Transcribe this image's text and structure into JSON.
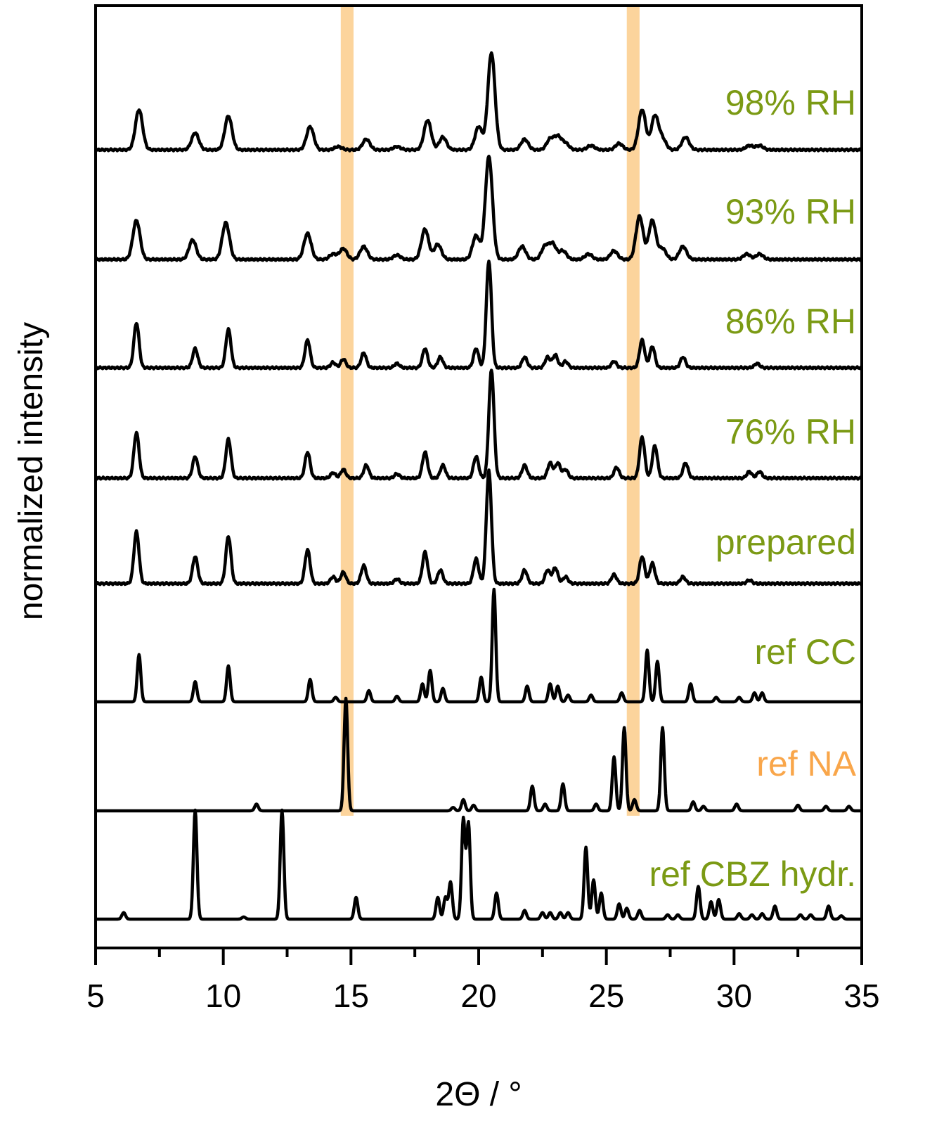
{
  "chart_data": {
    "type": "line",
    "title": "",
    "xlabel": "2Θ / °",
    "ylabel": "normalized intensity",
    "xlim": [
      5,
      35
    ],
    "xticks": [
      5,
      10,
      15,
      20,
      25,
      30,
      35
    ],
    "grid": false,
    "highlight_bands": [
      {
        "x": [
          14.6,
          15.1
        ],
        "color": "#fcd49c"
      },
      {
        "x": [
          25.8,
          26.3
        ],
        "color": "#fcd49c"
      }
    ],
    "colors": {
      "label_green": "#7b9a14",
      "label_orange": "#f9a64a",
      "line": "#000000"
    },
    "series": [
      {
        "name": "98% RH",
        "label_color": "#7b9a14",
        "baseline": 0.02,
        "scale": 0.22,
        "width": "broad",
        "peaks": [
          [
            6.7,
            0.38
          ],
          [
            8.9,
            0.16
          ],
          [
            10.2,
            0.32
          ],
          [
            13.4,
            0.22
          ],
          [
            14.5,
            0.03
          ],
          [
            15.6,
            0.1
          ],
          [
            16.8,
            0.03
          ],
          [
            18.0,
            0.28
          ],
          [
            18.6,
            0.12
          ],
          [
            20.0,
            0.22
          ],
          [
            20.5,
            0.92
          ],
          [
            21.8,
            0.1
          ],
          [
            22.8,
            0.1
          ],
          [
            23.1,
            0.12
          ],
          [
            23.4,
            0.06
          ],
          [
            24.4,
            0.04
          ],
          [
            25.5,
            0.06
          ],
          [
            26.4,
            0.38
          ],
          [
            26.9,
            0.32
          ],
          [
            27.2,
            0.1
          ],
          [
            28.1,
            0.12
          ],
          [
            30.6,
            0.04
          ],
          [
            31.0,
            0.04
          ]
        ]
      },
      {
        "name": "93% RH",
        "label_color": "#7b9a14",
        "baseline": 0.02,
        "scale": 0.22,
        "width": "broad",
        "peaks": [
          [
            6.6,
            0.36
          ],
          [
            8.8,
            0.18
          ],
          [
            10.1,
            0.34
          ],
          [
            13.3,
            0.24
          ],
          [
            14.3,
            0.05
          ],
          [
            14.7,
            0.1
          ],
          [
            15.5,
            0.12
          ],
          [
            16.8,
            0.04
          ],
          [
            17.9,
            0.28
          ],
          [
            18.4,
            0.14
          ],
          [
            19.9,
            0.22
          ],
          [
            20.4,
            0.95
          ],
          [
            21.7,
            0.12
          ],
          [
            22.6,
            0.12
          ],
          [
            22.9,
            0.14
          ],
          [
            23.3,
            0.08
          ],
          [
            24.3,
            0.05
          ],
          [
            25.3,
            0.08
          ],
          [
            26.3,
            0.4
          ],
          [
            26.8,
            0.36
          ],
          [
            27.2,
            0.1
          ],
          [
            28.0,
            0.12
          ],
          [
            30.5,
            0.05
          ],
          [
            31.0,
            0.05
          ]
        ]
      },
      {
        "name": "86% RH",
        "label_color": "#7b9a14",
        "baseline": 0.02,
        "scale": 0.22,
        "width": "medium",
        "peaks": [
          [
            6.6,
            0.42
          ],
          [
            8.9,
            0.18
          ],
          [
            10.2,
            0.36
          ],
          [
            13.3,
            0.26
          ],
          [
            14.3,
            0.05
          ],
          [
            14.7,
            0.08
          ],
          [
            15.5,
            0.14
          ],
          [
            16.8,
            0.04
          ],
          [
            17.9,
            0.18
          ],
          [
            18.5,
            0.1
          ],
          [
            19.9,
            0.18
          ],
          [
            20.4,
            1.0
          ],
          [
            21.8,
            0.1
          ],
          [
            22.7,
            0.1
          ],
          [
            23.0,
            0.12
          ],
          [
            23.4,
            0.06
          ],
          [
            25.3,
            0.06
          ],
          [
            26.4,
            0.26
          ],
          [
            26.8,
            0.2
          ],
          [
            28.0,
            0.1
          ],
          [
            30.9,
            0.04
          ]
        ]
      },
      {
        "name": "76% RH",
        "label_color": "#7b9a14",
        "baseline": 0.02,
        "scale": 0.22,
        "width": "medium",
        "peaks": [
          [
            6.6,
            0.42
          ],
          [
            8.9,
            0.2
          ],
          [
            10.2,
            0.36
          ],
          [
            13.3,
            0.24
          ],
          [
            14.3,
            0.05
          ],
          [
            14.7,
            0.08
          ],
          [
            15.6,
            0.12
          ],
          [
            16.8,
            0.04
          ],
          [
            17.9,
            0.24
          ],
          [
            18.6,
            0.12
          ],
          [
            19.9,
            0.2
          ],
          [
            20.5,
            1.0
          ],
          [
            21.8,
            0.12
          ],
          [
            22.8,
            0.14
          ],
          [
            23.1,
            0.14
          ],
          [
            23.4,
            0.08
          ],
          [
            25.4,
            0.1
          ],
          [
            26.4,
            0.38
          ],
          [
            26.9,
            0.3
          ],
          [
            28.1,
            0.14
          ],
          [
            30.6,
            0.06
          ],
          [
            31.0,
            0.06
          ]
        ]
      },
      {
        "name": "prepared",
        "label_color": "#7b9a14",
        "baseline": 0.02,
        "scale": 0.22,
        "width": "medium",
        "peaks": [
          [
            6.6,
            0.46
          ],
          [
            8.9,
            0.24
          ],
          [
            10.2,
            0.42
          ],
          [
            13.3,
            0.3
          ],
          [
            14.3,
            0.06
          ],
          [
            14.7,
            0.1
          ],
          [
            15.5,
            0.16
          ],
          [
            16.8,
            0.04
          ],
          [
            17.9,
            0.28
          ],
          [
            18.5,
            0.12
          ],
          [
            19.9,
            0.22
          ],
          [
            20.4,
            1.0
          ],
          [
            21.8,
            0.12
          ],
          [
            22.7,
            0.12
          ],
          [
            23.0,
            0.14
          ],
          [
            23.4,
            0.06
          ],
          [
            25.3,
            0.08
          ],
          [
            26.4,
            0.24
          ],
          [
            26.8,
            0.18
          ],
          [
            28.0,
            0.06
          ],
          [
            30.6,
            0.03
          ]
        ]
      },
      {
        "name": "ref CC",
        "label_color": "#7b9a14",
        "baseline": 0.0,
        "scale": 0.22,
        "width": "narrow",
        "peaks": [
          [
            6.7,
            0.42
          ],
          [
            8.9,
            0.18
          ],
          [
            10.2,
            0.32
          ],
          [
            13.4,
            0.2
          ],
          [
            14.4,
            0.04
          ],
          [
            15.7,
            0.1
          ],
          [
            16.8,
            0.05
          ],
          [
            17.8,
            0.16
          ],
          [
            18.1,
            0.28
          ],
          [
            18.6,
            0.12
          ],
          [
            20.1,
            0.22
          ],
          [
            20.6,
            1.0
          ],
          [
            21.9,
            0.14
          ],
          [
            22.8,
            0.16
          ],
          [
            23.1,
            0.14
          ],
          [
            23.5,
            0.06
          ],
          [
            24.4,
            0.06
          ],
          [
            25.6,
            0.08
          ],
          [
            26.6,
            0.46
          ],
          [
            27.0,
            0.36
          ],
          [
            28.3,
            0.16
          ],
          [
            29.3,
            0.04
          ],
          [
            30.2,
            0.04
          ],
          [
            30.8,
            0.08
          ],
          [
            31.1,
            0.08
          ]
        ]
      },
      {
        "name": "ref NA",
        "label_color": "#f9a64a",
        "baseline": 0.0,
        "scale": 0.22,
        "width": "narrow",
        "peaks": [
          [
            11.3,
            0.06
          ],
          [
            14.8,
            1.0
          ],
          [
            19.0,
            0.03
          ],
          [
            19.4,
            0.1
          ],
          [
            19.8,
            0.05
          ],
          [
            22.1,
            0.22
          ],
          [
            22.6,
            0.06
          ],
          [
            23.3,
            0.24
          ],
          [
            24.6,
            0.06
          ],
          [
            25.3,
            0.48
          ],
          [
            25.7,
            0.74
          ],
          [
            26.1,
            0.1
          ],
          [
            27.2,
            0.74
          ],
          [
            28.4,
            0.08
          ],
          [
            28.8,
            0.04
          ],
          [
            30.1,
            0.06
          ],
          [
            32.5,
            0.05
          ],
          [
            33.6,
            0.04
          ],
          [
            34.5,
            0.04
          ]
        ]
      },
      {
        "name": "ref CBZ hydr.",
        "label_color": "#7b9a14",
        "baseline": 0.0,
        "scale": 0.22,
        "width": "narrow",
        "peaks": [
          [
            6.1,
            0.06
          ],
          [
            8.9,
            1.0
          ],
          [
            10.8,
            0.02
          ],
          [
            12.3,
            1.0
          ],
          [
            15.2,
            0.2
          ],
          [
            18.4,
            0.2
          ],
          [
            18.7,
            0.2
          ],
          [
            18.9,
            0.34
          ],
          [
            19.4,
            0.92
          ],
          [
            19.6,
            0.88
          ],
          [
            20.7,
            0.24
          ],
          [
            21.8,
            0.08
          ],
          [
            22.5,
            0.06
          ],
          [
            22.8,
            0.06
          ],
          [
            23.2,
            0.06
          ],
          [
            23.5,
            0.06
          ],
          [
            24.2,
            0.66
          ],
          [
            24.5,
            0.36
          ],
          [
            24.8,
            0.24
          ],
          [
            25.5,
            0.14
          ],
          [
            25.8,
            0.1
          ],
          [
            26.3,
            0.08
          ],
          [
            27.4,
            0.04
          ],
          [
            27.8,
            0.04
          ],
          [
            28.6,
            0.3
          ],
          [
            29.1,
            0.16
          ],
          [
            29.4,
            0.18
          ],
          [
            30.2,
            0.05
          ],
          [
            30.7,
            0.04
          ],
          [
            31.1,
            0.05
          ],
          [
            31.6,
            0.12
          ],
          [
            32.6,
            0.04
          ],
          [
            33.0,
            0.04
          ],
          [
            33.7,
            0.12
          ],
          [
            34.2,
            0.03
          ]
        ]
      }
    ]
  }
}
